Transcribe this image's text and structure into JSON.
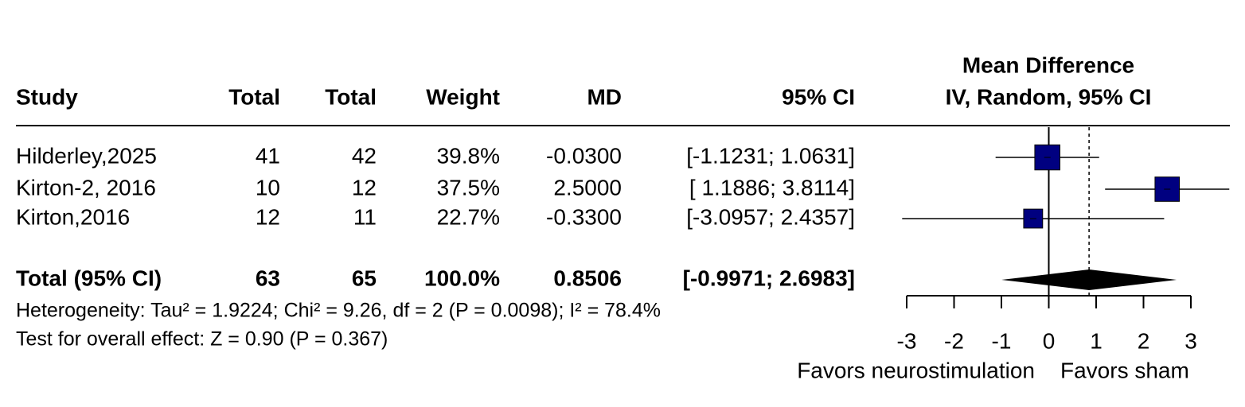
{
  "chart_data": {
    "type": "forest",
    "columns": [
      "Study",
      "Total",
      "Total",
      "Weight",
      "MD",
      "95% CI"
    ],
    "plot_title": [
      "Mean Difference",
      "IV, Random, 95% CI"
    ],
    "studies": [
      "Hilderley,2025",
      "Kirton-2, 2016",
      "Kirton,2016"
    ],
    "total_1": [
      41,
      10,
      12
    ],
    "total_2": [
      42,
      12,
      11
    ],
    "weight": [
      39.8,
      37.5,
      22.7
    ],
    "weight_labels": [
      "39.8%",
      "37.5%",
      "22.7%"
    ],
    "values": [
      -0.03,
      2.5,
      -0.33
    ],
    "value_labels": [
      "-0.0300",
      "2.5000",
      "-0.3300"
    ],
    "ci_lower": [
      -1.1231,
      1.1886,
      -3.0957
    ],
    "ci_upper": [
      1.0631,
      3.8114,
      2.4357
    ],
    "ci_labels": [
      "[-1.1231; 1.0631]",
      "[ 1.1886; 3.8114]",
      "[-3.0957; 2.4357]"
    ],
    "overall": {
      "label": "Total (95% CI)",
      "total_1": 63,
      "total_2": 65,
      "weight": 100,
      "weight_label": "100.0%",
      "value": 0.8506,
      "value_label": "0.8506",
      "ci_lower": -0.9971,
      "ci_upper": 2.6983,
      "ci_label": "[-0.9971; 2.6983]"
    },
    "heterogeneity": "Heterogeneity: Tau² = 1.9224; Chi² = 9.26, df = 2 (P = 0.0098); I² = 78.4%",
    "overall_effect": "Test for overall effect: Z = 0.90 (P = 0.367)",
    "xlim": [
      -3,
      3
    ],
    "xticks": [
      -3,
      -2,
      -1,
      0,
      1,
      2,
      3
    ],
    "xlabel_left": "Favors neurostimulation",
    "xlabel_right": "Favors sham",
    "color": "#000080"
  }
}
